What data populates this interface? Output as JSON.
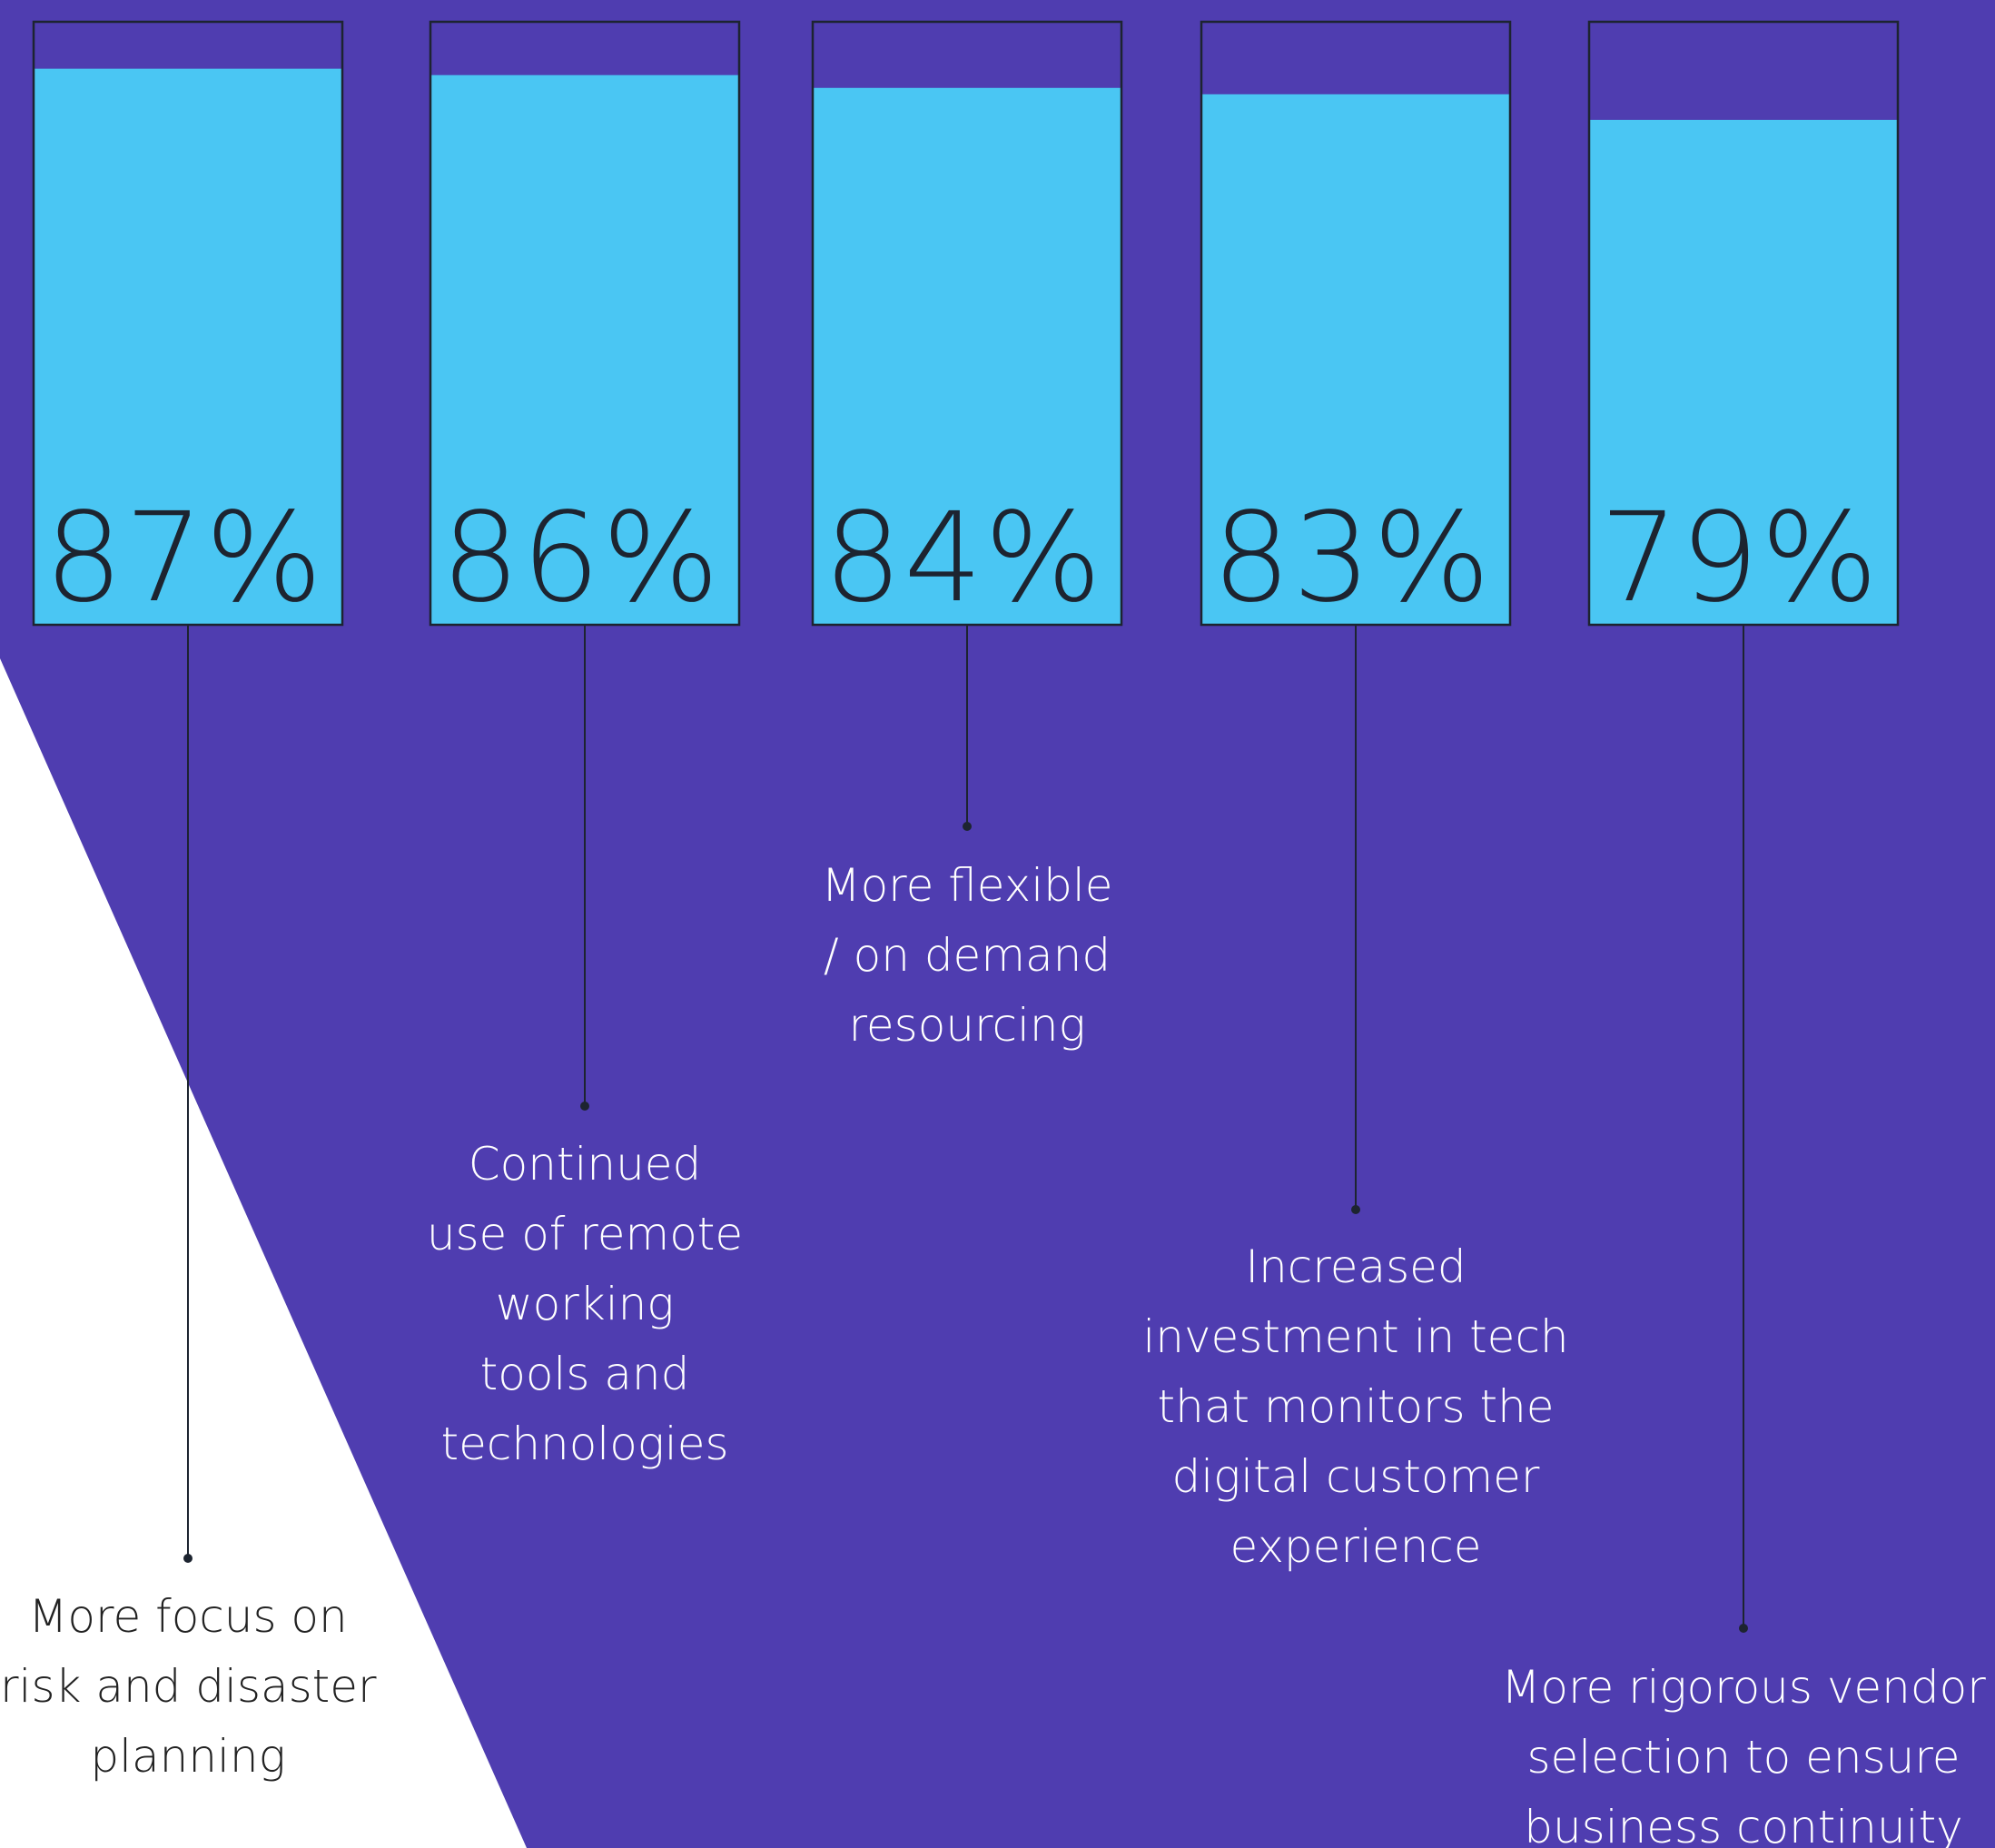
{
  "colors": {
    "background_purple": "#4f3db0",
    "fill_blue": "#4ac6f3",
    "outline": "#1d2430",
    "value_text": "#1d2430",
    "label_text_on_purple": "#ffffff",
    "label_text_on_white": "#222222",
    "page_white": "#ffffff"
  },
  "chart_data": {
    "type": "bar",
    "title": "",
    "xlabel": "",
    "ylabel": "",
    "ylim": [
      0,
      100
    ],
    "grid": false,
    "categories": [
      "More focus on risk and disaster planning",
      "Continued use of remote working tools and technologies",
      "More flexible / on demand resourcing",
      "Increased investment in tech that monitors the digital customer experience",
      "More rigorous vendor selection to ensure business continuity"
    ],
    "values": [
      87,
      86,
      84,
      83,
      79
    ],
    "value_labels": [
      "87%",
      "86%",
      "84%",
      "83%",
      "79%"
    ],
    "label_lines": [
      [
        "More focus on",
        "risk and disaster",
        "planning"
      ],
      [
        "Continued",
        "use of remote",
        "working",
        "tools and",
        "technologies"
      ],
      [
        "More flexible",
        "/ on demand",
        "resourcing"
      ],
      [
        "Increased",
        "investment in tech",
        "that monitors the",
        "digital customer",
        "experience"
      ],
      [
        "More rigorous vendor",
        "selection to ensure",
        "business continuity"
      ]
    ]
  }
}
